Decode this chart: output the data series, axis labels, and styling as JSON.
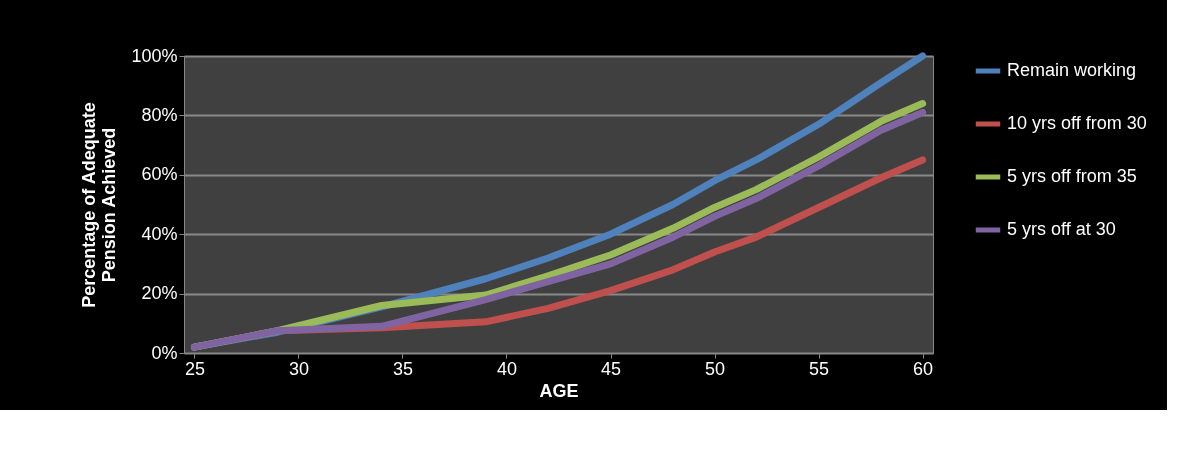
{
  "chart_data": {
    "type": "line",
    "xlabel": "AGE",
    "ylabel": "Percentage of Adequate Pension Achieved",
    "xlim": [
      24.5,
      60.5
    ],
    "xticks": [
      25,
      30,
      35,
      40,
      45,
      50,
      55,
      60
    ],
    "ylim": [
      0,
      100
    ],
    "yticks": [
      {
        "value": 0,
        "label": "0%"
      },
      {
        "value": 20,
        "label": "20%"
      },
      {
        "value": 40,
        "label": "40%"
      },
      {
        "value": 60,
        "label": "60%"
      },
      {
        "value": 80,
        "label": "80%"
      },
      {
        "value": 100,
        "label": "100%"
      }
    ],
    "grid": "y",
    "legend": "right",
    "marker": "none",
    "line_style": "solid",
    "x": [
      25,
      29,
      34,
      39,
      42,
      45,
      48,
      50,
      52,
      55,
      58,
      60
    ],
    "series": [
      {
        "name": "Remain working",
        "color": "#4f81bd",
        "values": [
          2,
          7,
          15.5,
          25,
          32,
          40,
          50,
          58,
          65,
          77,
          91,
          100
        ]
      },
      {
        "name": "10 yrs off from 30",
        "color": "#c0504d",
        "values": [
          2,
          7.5,
          8.5,
          10.5,
          15,
          21,
          28,
          34,
          39,
          49,
          59,
          65
        ]
      },
      {
        "name": "5 yrs off from 35",
        "color": "#9bbb59",
        "values": [
          2,
          7.5,
          16,
          19.5,
          26,
          33,
          42,
          49,
          55,
          66,
          78,
          84
        ]
      },
      {
        "name": "5 yrs off at 30",
        "color": "#8064a2",
        "values": [
          2,
          7.5,
          9,
          18,
          24,
          30,
          39,
          46,
          52,
          63,
          75,
          81
        ]
      }
    ]
  }
}
